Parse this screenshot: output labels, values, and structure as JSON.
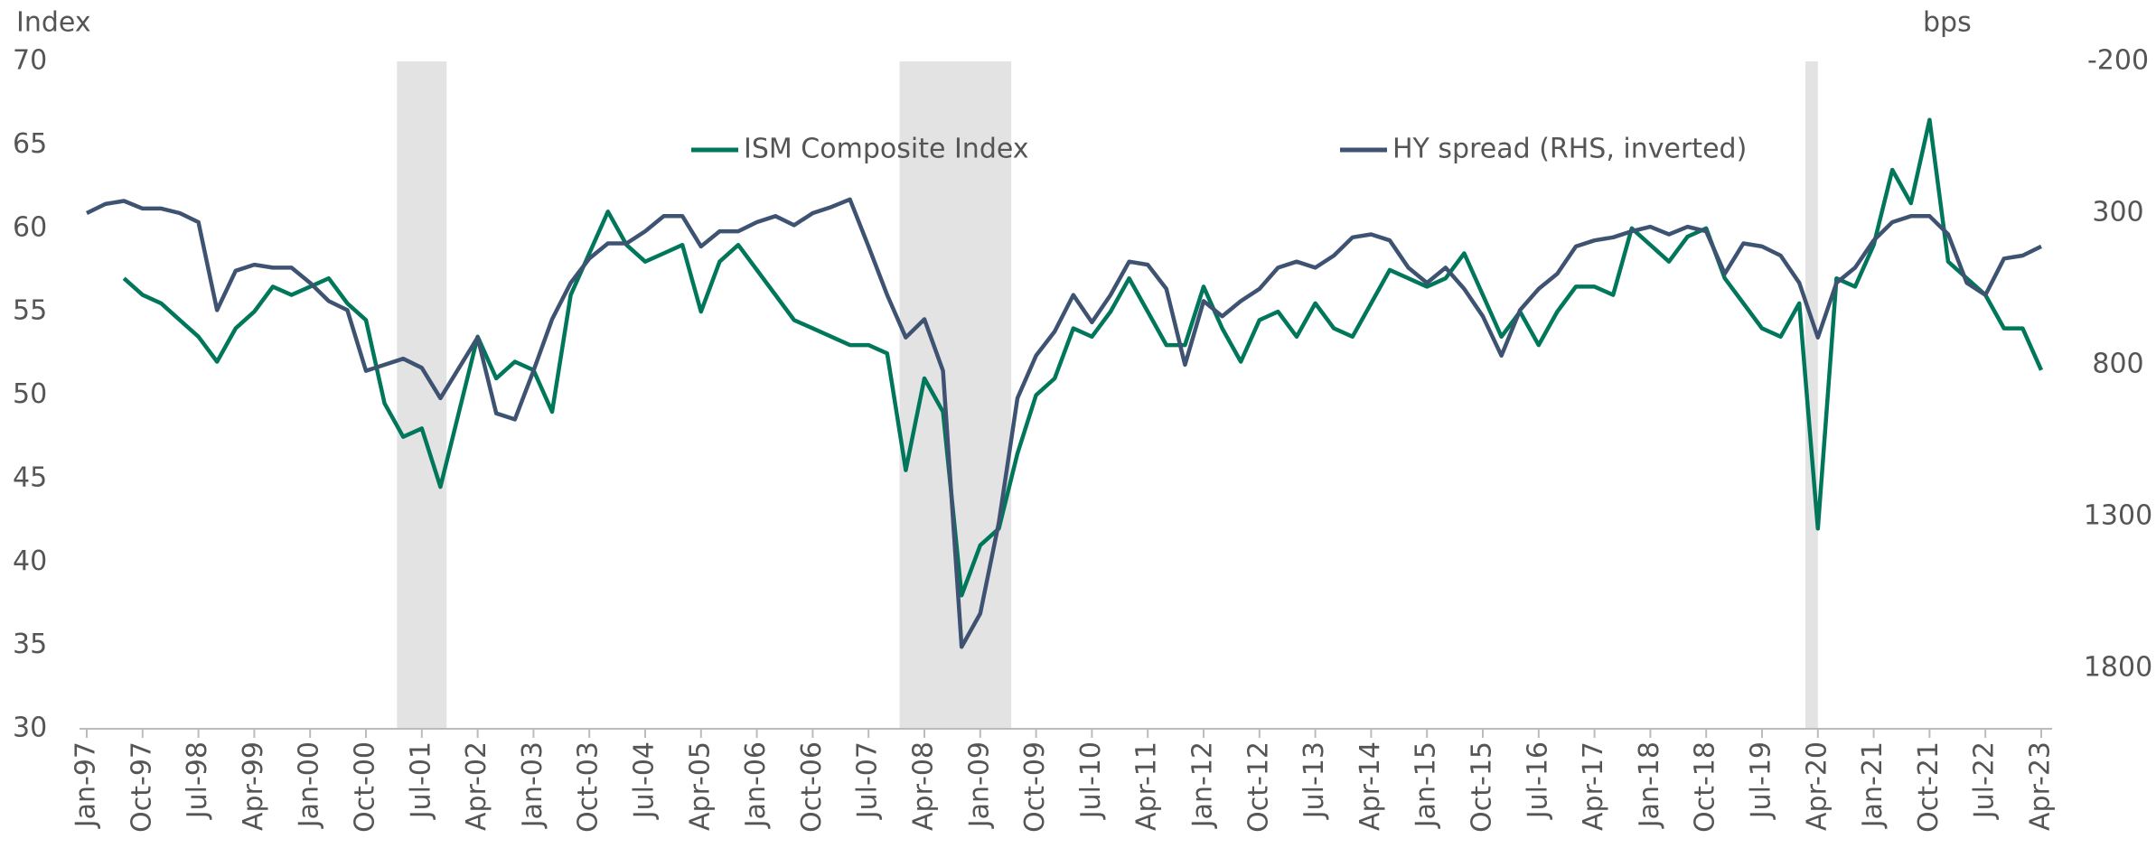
{
  "chart_data": {
    "type": "line",
    "y_label": "Index",
    "y2_label": "bps",
    "categories": [
      "Jan-97",
      null,
      null,
      "Oct-97",
      null,
      null,
      "Jul-98",
      null,
      null,
      "Apr-99",
      null,
      null,
      "Jan-00",
      null,
      null,
      "Oct-00",
      null,
      null,
      "Jul-01",
      null,
      null,
      "Apr-02",
      null,
      null,
      "Jan-03",
      null,
      null,
      "Oct-03",
      null,
      null,
      "Jul-04",
      null,
      null,
      "Apr-05",
      null,
      null,
      "Jan-06",
      null,
      null,
      "Oct-06",
      null,
      null,
      "Jul-07",
      null,
      null,
      "Apr-08",
      null,
      null,
      "Jan-09",
      null,
      null,
      "Oct-09",
      null,
      null,
      "Jul-10",
      null,
      null,
      "Apr-11",
      null,
      null,
      "Jan-12",
      null,
      null,
      "Oct-12",
      null,
      null,
      "Jul-13",
      null,
      null,
      "Apr-14",
      null,
      null,
      "Jan-15",
      null,
      null,
      "Oct-15",
      null,
      null,
      "Jul-16",
      null,
      null,
      "Apr-17",
      null,
      null,
      "Jan-18",
      null,
      null,
      "Oct-18",
      null,
      null,
      "Jul-19",
      null,
      null,
      "Apr-20",
      null,
      null,
      "Jan-21",
      null,
      null,
      "Oct-21",
      null,
      null,
      "Jul-22",
      null,
      null,
      "Apr-23"
    ],
    "series": [
      {
        "name": "ISM Composite Index",
        "color": "#00775a",
        "axis": "y",
        "values": [
          null,
          null,
          57,
          56,
          55.5,
          54.5,
          53.5,
          52,
          54,
          55,
          56.5,
          56,
          56.5,
          57,
          55.5,
          54.5,
          49.5,
          47.5,
          48,
          44.5,
          49,
          53.5,
          51,
          52,
          51.5,
          49,
          56,
          58.5,
          61,
          59,
          58,
          58.5,
          59,
          55,
          58,
          59,
          57.5,
          56,
          54.5,
          54,
          53.5,
          53,
          53,
          52.5,
          45.5,
          51,
          49,
          38,
          41,
          42,
          46.5,
          50,
          51,
          54,
          53.5,
          55,
          57,
          55,
          53,
          53,
          56.5,
          54,
          52,
          54.5,
          55,
          53.5,
          55.5,
          54,
          53.5,
          55.5,
          57.5,
          57,
          56.5,
          57,
          58.5,
          56,
          53.5,
          55,
          53,
          55,
          56.5,
          56.5,
          56,
          60,
          59,
          58,
          59.5,
          60,
          57,
          55.5,
          54,
          53.5,
          55.5,
          42,
          57,
          56.5,
          59,
          63.5,
          61.5,
          66.5,
          58,
          57,
          56,
          54,
          54,
          51.5
        ]
      },
      {
        "name": "HY spread (RHS, inverted)",
        "color": "#3e5371",
        "axis": "y2",
        "values": [
          300,
          270,
          260,
          285,
          285,
          300,
          330,
          620,
          490,
          470,
          480,
          480,
          530,
          590,
          620,
          820,
          800,
          780,
          810,
          910,
          810,
          710,
          960,
          980,
          820,
          650,
          530,
          450,
          400,
          400,
          360,
          310,
          310,
          410,
          360,
          360,
          330,
          310,
          340,
          300,
          280,
          255,
          410,
          570,
          710,
          650,
          820,
          1730,
          1620,
          1320,
          910,
          770,
          690,
          570,
          660,
          570,
          460,
          470,
          550,
          800,
          590,
          640,
          590,
          550,
          480,
          460,
          480,
          440,
          380,
          370,
          390,
          480,
          530,
          480,
          550,
          640,
          770,
          620,
          550,
          500,
          410,
          390,
          380,
          360,
          345,
          370,
          345,
          360,
          500,
          400,
          410,
          440,
          530,
          710,
          530,
          480,
          390,
          330,
          310,
          310,
          370,
          530,
          570,
          450,
          440,
          410
        ]
      }
    ],
    "shaded_periods": [
      {
        "start": "Mar-01",
        "end": "Nov-01"
      },
      {
        "start": "Dec-07",
        "end": "Jun-09"
      },
      {
        "start": "Feb-20",
        "end": "Apr-20"
      }
    ],
    "shade_color": "#e3e3e3",
    "ylim": [
      30,
      70
    ],
    "yticks": [
      30,
      35,
      40,
      45,
      50,
      55,
      60,
      65,
      70
    ],
    "y2lim": [
      -200,
      2000
    ],
    "y2ticks": [
      -200,
      300,
      800,
      1300,
      1800
    ],
    "y2_inverted": true,
    "legend": "top"
  }
}
